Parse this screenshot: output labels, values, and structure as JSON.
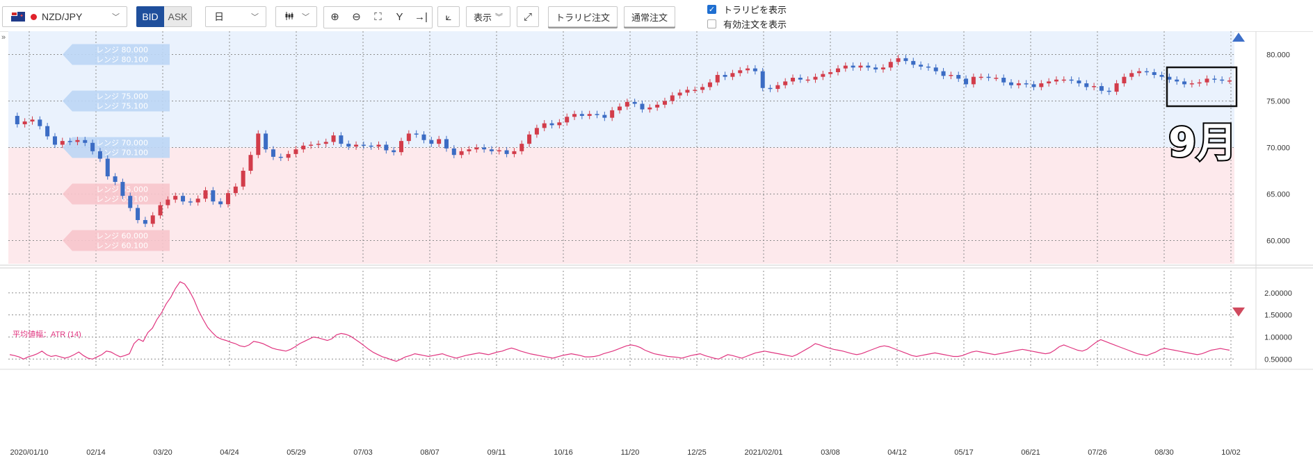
{
  "toolbar": {
    "pair": "NZD/JPY",
    "bid_label": "BID",
    "ask_label": "ASK",
    "period": "日",
    "display_label": "表示",
    "trailpip_order": "トラリピ注文",
    "normal_order": "通常注文",
    "show_trailpip_label": "トラリピを表示",
    "show_trailpip_checked": true,
    "show_active_orders_label": "有効注文を表示",
    "show_active_orders_checked": false,
    "icons": [
      "zoom-in-icon",
      "zoom-out-icon",
      "fit-icon",
      "cursor-mode-icon",
      "jump-latest-icon",
      "add-indicator-icon",
      "expand-icon"
    ]
  },
  "overlay": {
    "month_label": "9月",
    "range_labels": [
      "レンジ 80.000",
      "レンジ 80.100",
      "レンジ 75.000",
      "レンジ 75.100",
      "レンジ 70.000",
      "レンジ 70.100",
      "レンジ 65.000",
      "レンジ 65.100",
      "レンジ 60.000",
      "レンジ 60.100"
    ]
  },
  "colors": {
    "up_candle": "#d23c4a",
    "down_candle": "#3b6cc4",
    "upper_zone": "#eaf2fd",
    "lower_zone": "#fde9ec",
    "atr_line": "#e0347f"
  },
  "chart_data": [
    {
      "type": "candlestick",
      "pair": "NZD/JPY",
      "timeframe": "日",
      "ylim": [
        57.5,
        82.5
      ],
      "y_ticks": [
        "80.000",
        "75.000",
        "70.000",
        "65.000",
        "60.000"
      ],
      "x_ticks": [
        "2020/01/10",
        "02/14",
        "03/20",
        "04/24",
        "05/29",
        "07/03",
        "08/07",
        "09/11",
        "10/16",
        "11/20",
        "12/25",
        "2021/02/01",
        "03/08",
        "04/12",
        "05/17",
        "06/21",
        "07/26",
        "08/30",
        "10/02"
      ],
      "grid": true,
      "range_zones": [
        {
          "from": 70.0,
          "to": 82.5,
          "name": "upper"
        },
        {
          "from": 57.5,
          "to": 70.0,
          "name": "lower"
        }
      ],
      "close_path": [
        73.4,
        72.5,
        72.8,
        73.0,
        72.3,
        71.2,
        70.3,
        70.7,
        70.6,
        70.8,
        70.5,
        69.6,
        68.8,
        66.9,
        66.3,
        64.8,
        63.5,
        62.2,
        61.8,
        62.7,
        63.8,
        64.4,
        64.8,
        64.2,
        64.1,
        64.5,
        65.4,
        64.2,
        63.9,
        65.1,
        65.8,
        67.5,
        69.2,
        71.5,
        69.8,
        69.0,
        68.9,
        69.3,
        69.8,
        70.2,
        70.3,
        70.4,
        70.6,
        71.3,
        70.4,
        70.1,
        70.3,
        70.2,
        70.1,
        70.3,
        69.7,
        69.5,
        70.7,
        71.5,
        71.4,
        70.8,
        70.4,
        70.9,
        69.9,
        69.2,
        69.6,
        69.8,
        70.0,
        69.8,
        69.6,
        69.7,
        69.3,
        69.6,
        70.4,
        71.4,
        72.1,
        72.6,
        72.4,
        72.7,
        73.3,
        73.6,
        73.4,
        73.6,
        73.5,
        73.2,
        74.0,
        74.4,
        74.9,
        74.7,
        74.1,
        74.3,
        74.6,
        75.0,
        75.6,
        75.9,
        76.2,
        76.2,
        76.5,
        77.0,
        77.8,
        77.6,
        78.0,
        78.3,
        78.5,
        78.2,
        76.4,
        76.3,
        76.7,
        77.1,
        77.5,
        77.3,
        77.3,
        77.6,
        77.9,
        78.1,
        78.5,
        78.8,
        78.6,
        78.8,
        78.6,
        78.4,
        78.6,
        79.2,
        79.6,
        79.3,
        78.9,
        78.7,
        78.6,
        78.2,
        77.7,
        77.8,
        77.4,
        76.8,
        77.6,
        77.6,
        77.5,
        77.5,
        77.0,
        76.7,
        76.9,
        76.8,
        76.5,
        76.9,
        77.1,
        77.3,
        77.3,
        77.2,
        76.9,
        76.5,
        76.6,
        76.1,
        76.0,
        76.9,
        77.6,
        78.0,
        78.2,
        78.1,
        77.8,
        77.6,
        77.3,
        77.1,
        76.8,
        76.9,
        77.0,
        77.4,
        77.3,
        77.2,
        77.2
      ],
      "markers": {
        "close_start": 73.4,
        "close_end": 77.2,
        "low_approx": 61.5,
        "high_approx": 80.0
      }
    },
    {
      "type": "line",
      "title": "平均値幅：ATR (14)",
      "ylim": [
        0.3,
        2.5
      ],
      "y_ticks": [
        "2.00000",
        "1.50000",
        "1.00000",
        "0.50000"
      ],
      "series": [
        {
          "name": "ATR (14)",
          "values": [
            0.6,
            0.58,
            0.55,
            0.5,
            0.55,
            0.58,
            0.62,
            0.68,
            0.6,
            0.56,
            0.58,
            0.55,
            0.52,
            0.55,
            0.6,
            0.66,
            0.58,
            0.52,
            0.5,
            0.55,
            0.6,
            0.68,
            0.66,
            0.6,
            0.55,
            0.58,
            0.62,
            0.85,
            0.95,
            0.9,
            1.1,
            1.2,
            1.4,
            1.55,
            1.75,
            1.9,
            2.1,
            2.25,
            2.2,
            2.05,
            1.85,
            1.6,
            1.4,
            1.22,
            1.1,
            1.0,
            0.95,
            0.92,
            0.88,
            0.85,
            0.8,
            0.78,
            0.82,
            0.9,
            0.88,
            0.85,
            0.8,
            0.75,
            0.72,
            0.7,
            0.68,
            0.72,
            0.78,
            0.85,
            0.9,
            0.95,
            1.0,
            0.98,
            0.95,
            0.92,
            0.96,
            1.05,
            1.08,
            1.06,
            1.02,
            0.95,
            0.88,
            0.8,
            0.72,
            0.65,
            0.6,
            0.55,
            0.52,
            0.48,
            0.45,
            0.5,
            0.55,
            0.58,
            0.62,
            0.6,
            0.58,
            0.56,
            0.58,
            0.6,
            0.62,
            0.58,
            0.55,
            0.52,
            0.55,
            0.58,
            0.6,
            0.62,
            0.64,
            0.62,
            0.6,
            0.63,
            0.66,
            0.68,
            0.72,
            0.75,
            0.72,
            0.68,
            0.65,
            0.62,
            0.6,
            0.58,
            0.56,
            0.54,
            0.52,
            0.55,
            0.58,
            0.6,
            0.62,
            0.6,
            0.58,
            0.55,
            0.55,
            0.56,
            0.58,
            0.62,
            0.65,
            0.68,
            0.72,
            0.76,
            0.8,
            0.82,
            0.8,
            0.76,
            0.7,
            0.66,
            0.62,
            0.6,
            0.58,
            0.56,
            0.55,
            0.54,
            0.52,
            0.55,
            0.58,
            0.6,
            0.62,
            0.58,
            0.55,
            0.52,
            0.5,
            0.55,
            0.6,
            0.58,
            0.55,
            0.52,
            0.56,
            0.6,
            0.64,
            0.66,
            0.68,
            0.66,
            0.64,
            0.62,
            0.6,
            0.58,
            0.56,
            0.6,
            0.66,
            0.72,
            0.78,
            0.85,
            0.82,
            0.78,
            0.75,
            0.72,
            0.7,
            0.68,
            0.65,
            0.62,
            0.6,
            0.62,
            0.66,
            0.7,
            0.74,
            0.78,
            0.8,
            0.78,
            0.74,
            0.7,
            0.66,
            0.62,
            0.58,
            0.56,
            0.58,
            0.6,
            0.62,
            0.64,
            0.62,
            0.6,
            0.58,
            0.56,
            0.56,
            0.58,
            0.62,
            0.66,
            0.68,
            0.66,
            0.64,
            0.62,
            0.6,
            0.62,
            0.64,
            0.66,
            0.68,
            0.7,
            0.72,
            0.7,
            0.68,
            0.66,
            0.64,
            0.62,
            0.64,
            0.7,
            0.78,
            0.82,
            0.78,
            0.74,
            0.7,
            0.68,
            0.72,
            0.8,
            0.88,
            0.94,
            0.9,
            0.86,
            0.82,
            0.78,
            0.74,
            0.7,
            0.66,
            0.62,
            0.6,
            0.58,
            0.62,
            0.66,
            0.72,
            0.74,
            0.72,
            0.7,
            0.68,
            0.66,
            0.64,
            0.62,
            0.6,
            0.62,
            0.66,
            0.7,
            0.72,
            0.74,
            0.72,
            0.7
          ]
        }
      ]
    }
  ]
}
